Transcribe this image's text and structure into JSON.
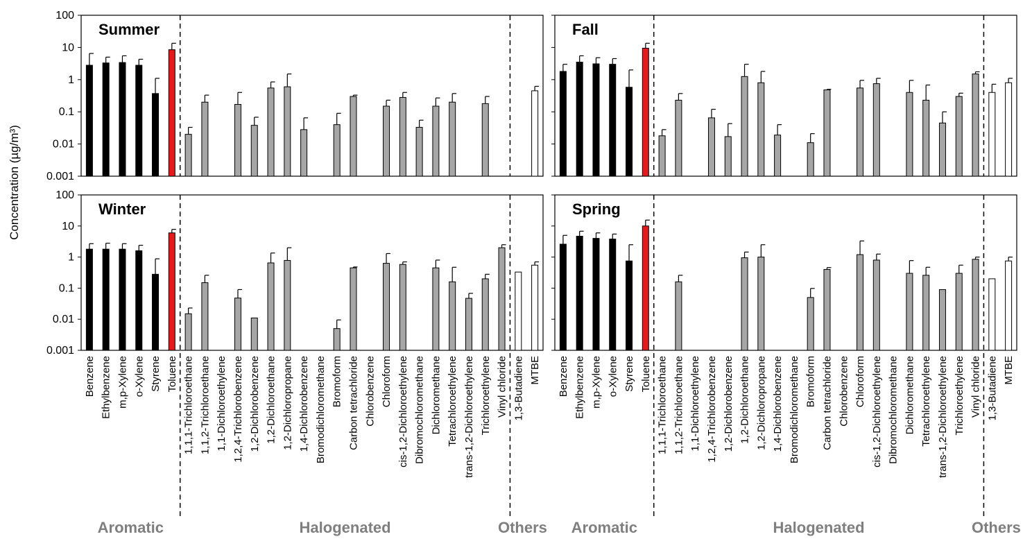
{
  "colors": {
    "aromatic": "#000000",
    "toluene": "#e41a1c",
    "halogenated": "#a6a6a6",
    "others": "#ffffff",
    "group_label": "#7f7f7f"
  },
  "chart_data": {
    "type": "bar",
    "scale": "log",
    "ylim": [
      0.001,
      100
    ],
    "yticks": [
      "0.001",
      "0.01",
      "0.1",
      "1",
      "10",
      "100"
    ],
    "ylabel": "Concentration (µg/m³)",
    "groups": [
      {
        "label": "Aromatic",
        "start": 0,
        "end": 6
      },
      {
        "label": "Halogenated",
        "start": 6,
        "end": 26
      },
      {
        "label": "Others",
        "start": 26,
        "end": 28
      }
    ],
    "categories": [
      "Benzene",
      "Ethylbenzene",
      "m,p-Xylene",
      "o-Xylene",
      "Styrene",
      "Toluene",
      "1,1,1-Trichloroethane",
      "1,1,2-Trichloroethane",
      "1,1-Dichloroethylene",
      "1,2,4-Trichlorobenzene",
      "1,2-Dichlorobenzene",
      "1,2-Dichloroethane",
      "1,2-Dichloropropane",
      "1,4-Dichlorobenzene",
      "Bromodichloromethane",
      "Bromoform",
      "Carbon tetrachloride",
      "Chlorobenzene",
      "Chloroform",
      "cis-1,2-Dichloroethylene",
      "Dibromochloromethane",
      "Dichloromethane",
      "Tetrachloroethylene",
      "trans-1,2-Dichloroethylene",
      "Trichloroethylene",
      "Vinyl chloride",
      "1,3-Butadiene",
      "MTBE"
    ],
    "panels": [
      {
        "title": "Summer",
        "values": [
          2.8,
          3.3,
          3.4,
          2.8,
          0.37,
          8.5,
          0.02,
          0.2,
          null,
          0.17,
          0.038,
          0.55,
          0.6,
          0.028,
          null,
          0.04,
          0.3,
          null,
          0.15,
          0.28,
          0.033,
          0.15,
          0.2,
          null,
          0.18,
          null,
          null,
          0.45
        ],
        "err_upper": [
          6.5,
          5.0,
          5.5,
          4.3,
          1.1,
          13.5,
          0.033,
          0.33,
          null,
          0.4,
          0.068,
          0.85,
          1.5,
          0.065,
          null,
          0.09,
          0.33,
          null,
          0.23,
          0.4,
          0.055,
          0.27,
          0.37,
          null,
          0.3,
          null,
          null,
          0.62
        ]
      },
      {
        "title": "Fall",
        "values": [
          1.8,
          3.5,
          3.1,
          3.0,
          0.58,
          9.5,
          0.018,
          0.23,
          null,
          0.065,
          0.017,
          1.25,
          0.8,
          0.019,
          null,
          0.011,
          0.48,
          null,
          0.55,
          0.75,
          null,
          0.4,
          0.23,
          0.045,
          0.3,
          1.5,
          0.4,
          0.8
        ],
        "err_upper": [
          3.0,
          5.5,
          4.8,
          4.5,
          2.0,
          13.5,
          0.028,
          0.37,
          null,
          0.12,
          0.043,
          3.0,
          1.8,
          0.04,
          null,
          0.021,
          0.5,
          null,
          0.95,
          1.1,
          null,
          0.95,
          0.68,
          0.1,
          0.38,
          1.75,
          0.72,
          1.1
        ]
      },
      {
        "title": "Winter",
        "values": [
          1.8,
          1.8,
          1.8,
          1.6,
          0.28,
          6.0,
          0.015,
          0.15,
          null,
          0.048,
          0.011,
          0.65,
          0.78,
          null,
          null,
          0.005,
          0.45,
          null,
          0.63,
          0.58,
          null,
          0.45,
          0.16,
          0.047,
          0.2,
          2.0,
          0.33,
          0.55
        ],
        "err_upper": [
          2.7,
          2.8,
          2.7,
          2.4,
          0.88,
          7.8,
          0.023,
          0.26,
          null,
          0.09,
          0.011,
          1.35,
          2.0,
          null,
          null,
          0.0095,
          0.48,
          null,
          1.3,
          0.7,
          null,
          0.8,
          0.47,
          0.068,
          0.28,
          2.5,
          null,
          0.7
        ]
      },
      {
        "title": "Spring",
        "values": [
          2.6,
          4.7,
          4.0,
          3.8,
          0.75,
          10.0,
          null,
          0.16,
          null,
          null,
          null,
          0.95,
          1.0,
          null,
          null,
          0.05,
          0.4,
          null,
          1.2,
          0.8,
          null,
          0.3,
          0.26,
          0.09,
          0.3,
          0.85,
          0.2,
          0.75
        ],
        "err_upper": [
          5.0,
          6.8,
          6.0,
          5.5,
          2.5,
          15.5,
          null,
          0.26,
          null,
          null,
          null,
          1.45,
          2.5,
          null,
          null,
          0.098,
          0.46,
          null,
          3.3,
          1.25,
          null,
          0.77,
          0.47,
          null,
          0.55,
          1.0,
          null,
          1.0
        ]
      }
    ]
  }
}
